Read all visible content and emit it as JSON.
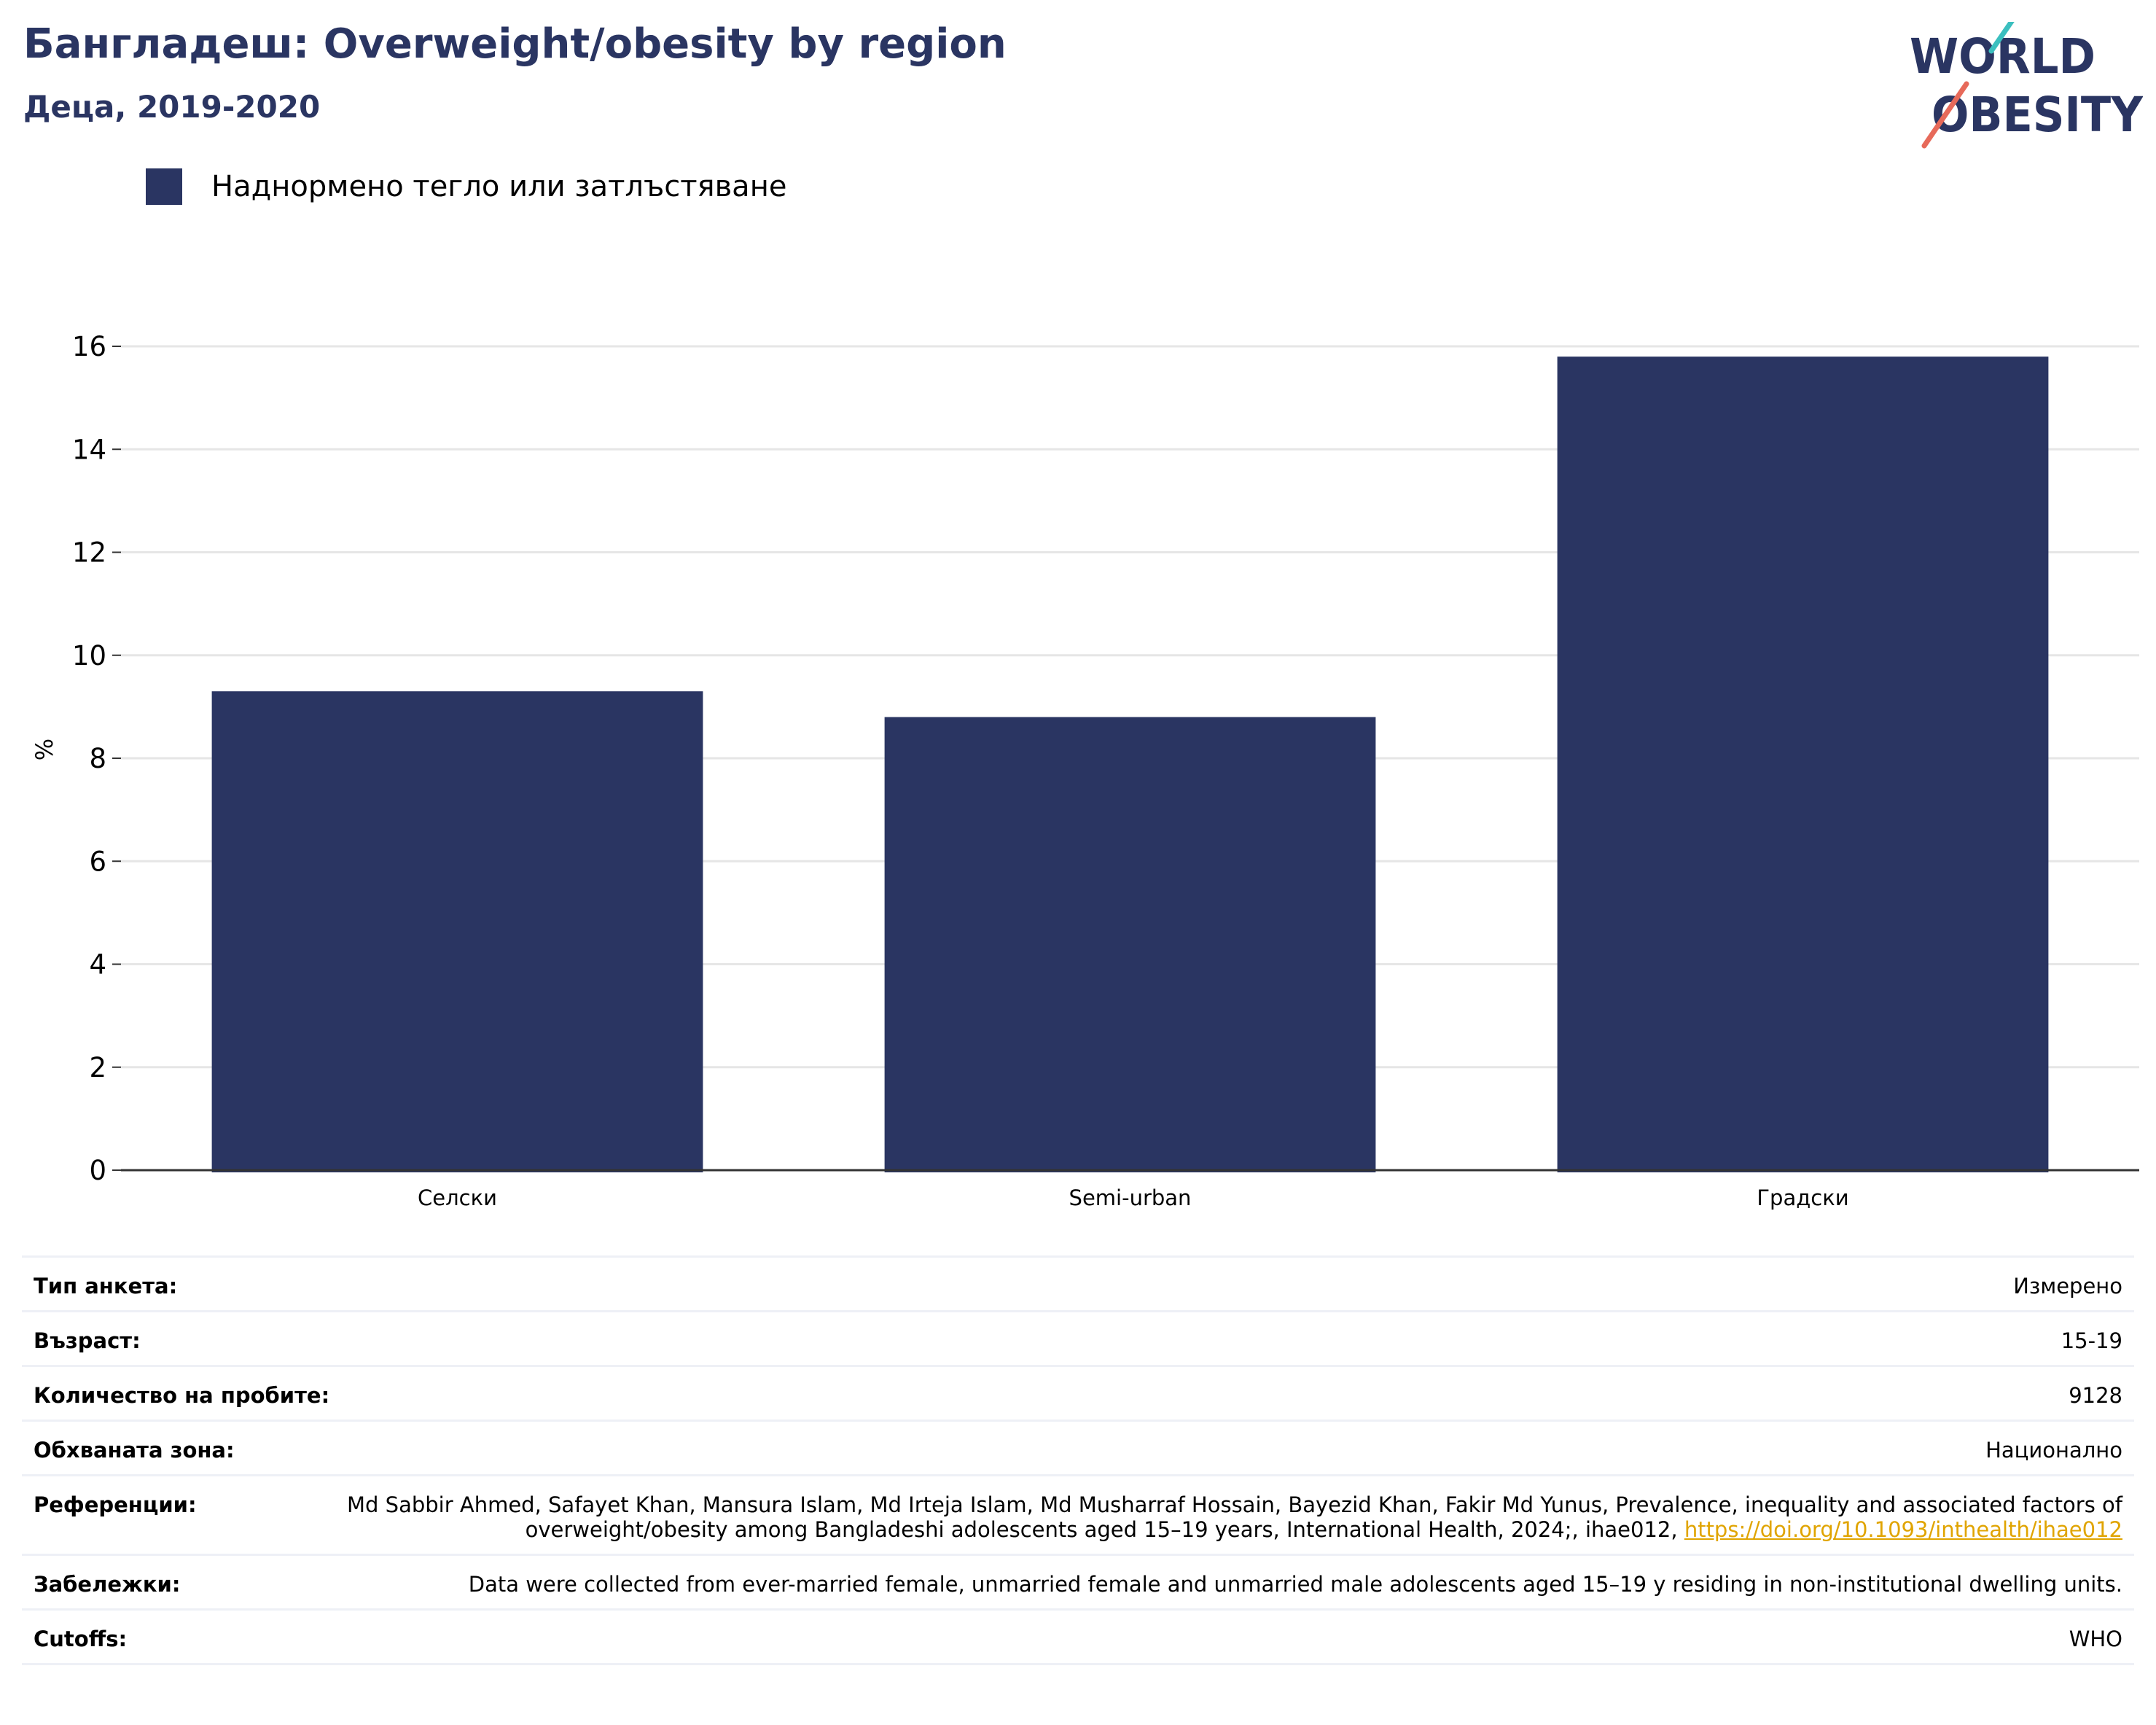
{
  "header": {
    "title": "Бангладеш: Overweight/obesity by region",
    "subtitle": "Деца, 2019-2020"
  },
  "logo": {
    "line1": "WORLD",
    "line2": "OBESITY",
    "colors": {
      "text": "#2a3562",
      "teal_slash": "#3bbfbf",
      "coral_slash": "#e76a5a"
    }
  },
  "colors": {
    "bar": "#2a3562",
    "grid": "#e6e6e6",
    "axis": "#333333",
    "link": "#e0a400"
  },
  "chart_data": {
    "type": "bar",
    "categories": [
      "Селски",
      "Semi-urban",
      "Градски"
    ],
    "series": [
      {
        "name": "Наднормено тегло или затлъстяване",
        "values": [
          9.3,
          8.8,
          15.8
        ]
      }
    ],
    "ylabel": "%",
    "xlabel": "",
    "ylim": [
      0,
      16
    ],
    "yticks": [
      0,
      2,
      4,
      6,
      8,
      10,
      12,
      14,
      16
    ],
    "grid": true,
    "legend_position": "top-left"
  },
  "info": {
    "rows": [
      {
        "label": "Тип анкета:",
        "value": "Измерено"
      },
      {
        "label": "Възраст:",
        "value": "15-19"
      },
      {
        "label": "Количество на пробите:",
        "value": "9128"
      },
      {
        "label": "Обхваната зона:",
        "value": "Национално"
      },
      {
        "label": "Референции:",
        "value": "Md Sabbir Ahmed, Safayet Khan, Mansura Islam, Md Irteja Islam, Md Musharraf Hossain, Bayezid Khan, Fakir Md Yunus, Prevalence, inequality and associated factors of overweight/obesity among Bangladeshi adolescents aged 15–19 years, International Health, 2024;, ihae012, ",
        "link": "https://doi.org/10.1093/inthealth/ihae012"
      },
      {
        "label": "Забележки:",
        "value": "Data were collected from ever-married female, unmarried female and unmarried male adolescents aged 15–19 y residing in non-institutional dwelling units."
      },
      {
        "label": "Cutoffs:",
        "value": "WHO"
      }
    ]
  }
}
